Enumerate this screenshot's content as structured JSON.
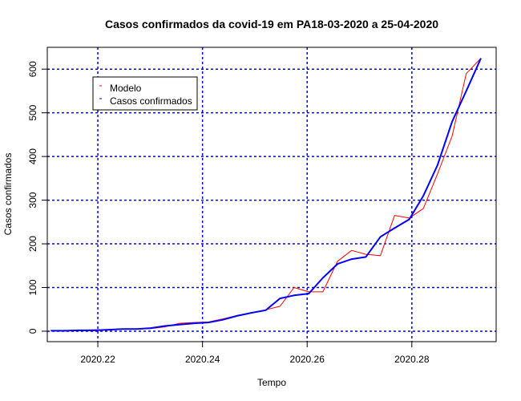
{
  "chart_data": {
    "type": "line",
    "title": "Casos confirmados da covid-19 em PA18-03-2020 a 25-04-2020",
    "xlabel": "Tempo",
    "ylabel": "Casos confirmados",
    "xlim": [
      2020.2,
      2020.3
    ],
    "ylim": [
      0,
      650
    ],
    "x_ticks": [
      2020.22,
      2020.24,
      2020.26,
      2020.28
    ],
    "x_tick_labels": [
      "2020.22",
      "2020.24",
      "2020.26",
      "2020.28"
    ],
    "y_ticks": [
      0,
      100,
      200,
      300,
      400,
      500,
      600
    ],
    "y_tick_labels": [
      "0",
      "100",
      "200",
      "300",
      "400",
      "500",
      "600"
    ],
    "grid": true,
    "grid_color": "#0000ff",
    "legend": {
      "position": "top-left",
      "entries": [
        {
          "label": "Modelo",
          "color": "#ff0000"
        },
        {
          "label": "Casos confirmados",
          "color": "#0000ff"
        }
      ]
    },
    "series": [
      {
        "color": "#ff0000",
        "x": [
          2020.211,
          2020.2137,
          2020.2164,
          2020.2192,
          2020.2219,
          2020.2247,
          2020.2274,
          2020.2301,
          2020.2329,
          2020.2356,
          2020.2384,
          2020.2411,
          2020.2438,
          2020.2466,
          2020.2493,
          2020.2521,
          2020.2548,
          2020.2575,
          2020.2603,
          2020.263,
          2020.2658,
          2020.2685,
          2020.2712,
          2020.274,
          2020.2767,
          2020.2795,
          2020.2822,
          2020.2849,
          2020.2877,
          2020.2904,
          2020.2932
        ],
        "values": [
          1,
          1,
          2,
          3,
          4,
          5,
          5,
          6,
          10,
          18,
          20,
          21,
          28,
          36,
          42,
          49,
          57,
          100,
          90,
          90,
          160,
          185,
          176,
          173,
          265,
          259,
          281,
          360,
          447,
          590,
          625
        ]
      },
      {
        "color": "#0000ff",
        "x": [
          2020.211,
          2020.2137,
          2020.2164,
          2020.2192,
          2020.2219,
          2020.2247,
          2020.2274,
          2020.2301,
          2020.2329,
          2020.2356,
          2020.2384,
          2020.2411,
          2020.2438,
          2020.2466,
          2020.2493,
          2020.2521,
          2020.2548,
          2020.2575,
          2020.2603,
          2020.263,
          2020.2658,
          2020.2685,
          2020.2712,
          2020.274,
          2020.2767,
          2020.2795,
          2020.2822,
          2020.2849,
          2020.2877,
          2020.2904,
          2020.2932
        ],
        "values": [
          1,
          1,
          2,
          2,
          3,
          5,
          5,
          7,
          12,
          15,
          18,
          20,
          26,
          35,
          42,
          48,
          75,
          82,
          86,
          122,
          154,
          165,
          170,
          216,
          236,
          256,
          310,
          380,
          480,
          550,
          625
        ]
      }
    ]
  }
}
